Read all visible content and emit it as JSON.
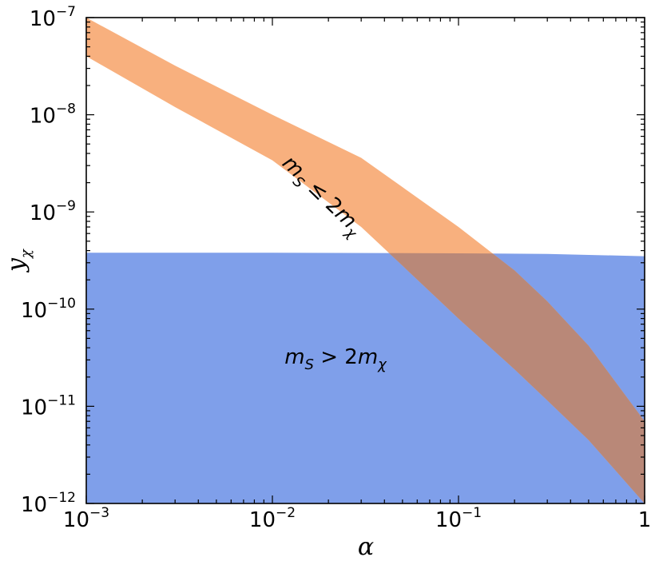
{
  "chart_data": {
    "type": "area",
    "x_scale": "log",
    "y_scale": "log",
    "xlim": [
      0.001,
      1
    ],
    "ylim": [
      1e-12,
      1e-07
    ],
    "xlabel": "α",
    "ylabel": {
      "base": "y",
      "sub": "χ"
    },
    "x_ticks": [
      {
        "value": 0.001,
        "base": "10",
        "exp": "−3"
      },
      {
        "value": 0.01,
        "base": "10",
        "exp": "−2"
      },
      {
        "value": 0.1,
        "base": "10",
        "exp": "−1"
      },
      {
        "value": 1,
        "base": "1",
        "exp": ""
      }
    ],
    "y_ticks": [
      {
        "value": 1e-12,
        "base": "10",
        "exp": "−12"
      },
      {
        "value": 1e-11,
        "base": "10",
        "exp": "−11"
      },
      {
        "value": 1e-10,
        "base": "10",
        "exp": "−10"
      },
      {
        "value": 1e-09,
        "base": "10",
        "exp": "−9"
      },
      {
        "value": 1e-08,
        "base": "10",
        "exp": "−8"
      },
      {
        "value": 1e-07,
        "base": "10",
        "exp": "−7"
      }
    ],
    "grid": false,
    "regions": [
      {
        "name": "m_S > 2m_χ",
        "color": "#7f9fea",
        "kind": "below_curve",
        "x": [
          0.001,
          0.01,
          0.1,
          0.3,
          1
        ],
        "y": [
          3.8e-10,
          3.8e-10,
          3.75e-10,
          3.7e-10,
          3.5e-10
        ]
      },
      {
        "name": "m_S ≤ 2m_χ",
        "color": "#f8b07e",
        "kind": "band",
        "x": [
          0.001,
          0.003,
          0.01,
          0.03,
          0.05,
          0.1,
          0.2,
          0.3,
          0.5,
          1
        ],
        "y_upper": [
          1e-07,
          3.2e-08,
          1e-08,
          3.6e-09,
          1.8e-09,
          7e-10,
          2.5e-10,
          1.2e-10,
          4.2e-11,
          7e-12
        ],
        "y_lower": [
          4e-08,
          1.2e-08,
          3.4e-09,
          7e-10,
          2.8e-10,
          8e-11,
          2.4e-11,
          1.15e-11,
          4.5e-12,
          1e-12
        ]
      }
    ],
    "overlap_color": "#b98878",
    "annotations": [
      {
        "base": "m",
        "sub": "S",
        "rel": " ≤ 2",
        "base2": "m",
        "sub2": "χ",
        "x": 0.01,
        "y": 4e-09,
        "rotation_deg": 44
      },
      {
        "base": "m",
        "sub": "S",
        "rel": " > 2",
        "base2": "m",
        "sub2": "χ",
        "x": 0.01,
        "y": 4.5e-11,
        "rotation_deg": 0
      }
    ]
  }
}
